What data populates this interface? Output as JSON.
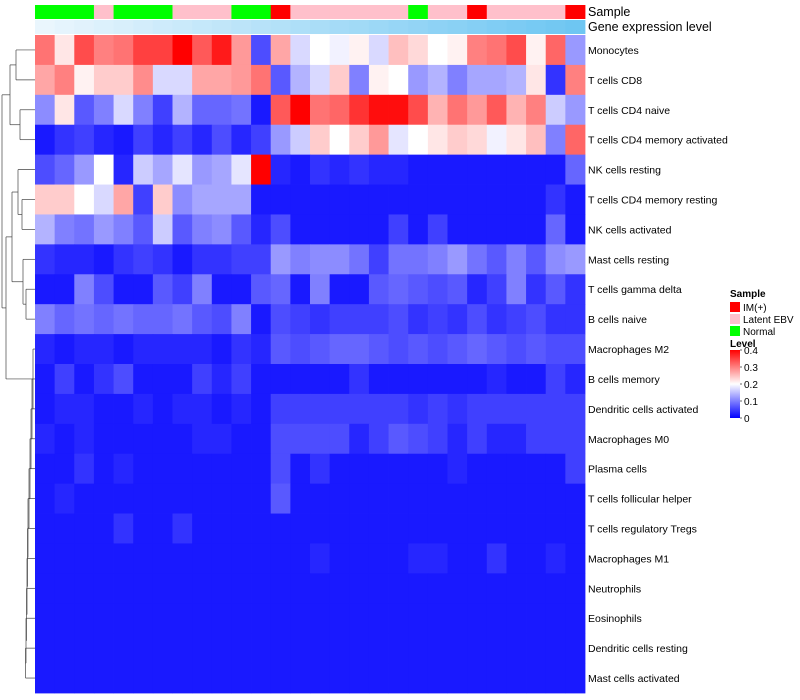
{
  "chart_data": {
    "type": "heatmap",
    "annotation_rows": [
      {
        "name": "Sample",
        "label": "Sample"
      },
      {
        "name": "Gene expression level",
        "label": "Gene expression level"
      }
    ],
    "sample_groups": [
      "Normal",
      "Normal",
      "Normal",
      "Latent EBV",
      "Normal",
      "Normal",
      "Normal",
      "Latent EBV",
      "Latent EBV",
      "Latent EBV",
      "Normal",
      "Normal",
      "IM(+)",
      "Latent EBV",
      "Latent EBV",
      "Latent EBV",
      "Latent EBV",
      "Latent EBV",
      "Latent EBV",
      "Normal",
      "Latent EBV",
      "Latent EBV",
      "IM(+)",
      "Latent EBV",
      "Latent EBV",
      "Latent EBV",
      "Latent EBV",
      "IM(+)"
    ],
    "expression_level": [
      0.05,
      0.07,
      0.09,
      0.11,
      0.13,
      0.15,
      0.17,
      0.19,
      0.21,
      0.23,
      0.25,
      0.27,
      0.29,
      0.31,
      0.33,
      0.35,
      0.37,
      0.39,
      0.41,
      0.43,
      0.45,
      0.47,
      0.49,
      0.51,
      0.53,
      0.55,
      0.57,
      0.59
    ],
    "rows": [
      "Monocytes",
      "T cells CD8",
      "T cells CD4 naive",
      "T cells CD4 memory activated",
      "NK cells resting",
      "T cells CD4 memory resting",
      "NK cells activated",
      "Mast cells resting",
      "T cells gamma delta",
      "B cells naive",
      "Macrophages M2",
      "B cells memory",
      "Dendritic cells activated",
      "Macrophages M0",
      "Plasma cells",
      "T cells follicular helper",
      "T cells regulatory  Tregs",
      "Macrophages M1",
      "Neutrophils",
      "Eosinophils",
      "Dendritic cells resting",
      "Mast cells activated"
    ],
    "values": [
      [
        0.31,
        0.22,
        0.34,
        0.3,
        0.31,
        0.35,
        0.35,
        0.4,
        0.33,
        0.38,
        0.28,
        0.06,
        0.27,
        0.17,
        0.2,
        0.19,
        0.21,
        0.17,
        0.25,
        0.23,
        0.2,
        0.21,
        0.3,
        0.31,
        0.34,
        0.21,
        0.32,
        0.12
      ],
      [
        0.27,
        0.3,
        0.21,
        0.24,
        0.24,
        0.29,
        0.17,
        0.17,
        0.27,
        0.27,
        0.28,
        0.31,
        0.07,
        0.14,
        0.17,
        0.24,
        0.1,
        0.21,
        0.2,
        0.12,
        0.14,
        0.1,
        0.13,
        0.13,
        0.14,
        0.22,
        0.04,
        0.3
      ],
      [
        0.11,
        0.22,
        0.07,
        0.1,
        0.17,
        0.1,
        0.05,
        0.14,
        0.08,
        0.08,
        0.09,
        0.02,
        0.33,
        0.4,
        0.31,
        0.32,
        0.36,
        0.39,
        0.39,
        0.34,
        0.26,
        0.31,
        0.28,
        0.33,
        0.26,
        0.3,
        0.16,
        0.12
      ],
      [
        0.02,
        0.04,
        0.05,
        0.03,
        0.02,
        0.05,
        0.03,
        0.05,
        0.03,
        0.06,
        0.03,
        0.05,
        0.12,
        0.16,
        0.24,
        0.2,
        0.24,
        0.28,
        0.18,
        0.2,
        0.22,
        0.24,
        0.23,
        0.19,
        0.22,
        0.25,
        0.1,
        0.32
      ],
      [
        0.06,
        0.08,
        0.12,
        0.2,
        0.03,
        0.16,
        0.13,
        0.18,
        0.12,
        0.13,
        0.18,
        0.4,
        0.03,
        0.02,
        0.04,
        0.03,
        0.04,
        0.03,
        0.03,
        0.02,
        0.02,
        0.02,
        0.02,
        0.02,
        0.02,
        0.02,
        0.02,
        0.08
      ],
      [
        0.24,
        0.24,
        0.2,
        0.17,
        0.27,
        0.05,
        0.24,
        0.11,
        0.13,
        0.13,
        0.13,
        0.02,
        0.02,
        0.02,
        0.02,
        0.02,
        0.02,
        0.02,
        0.02,
        0.02,
        0.02,
        0.02,
        0.02,
        0.02,
        0.02,
        0.02,
        0.04,
        0.02
      ],
      [
        0.14,
        0.1,
        0.09,
        0.12,
        0.1,
        0.07,
        0.16,
        0.07,
        0.1,
        0.11,
        0.07,
        0.03,
        0.06,
        0.02,
        0.02,
        0.02,
        0.02,
        0.02,
        0.05,
        0.02,
        0.05,
        0.02,
        0.02,
        0.02,
        0.02,
        0.02,
        0.08,
        0.02
      ],
      [
        0.04,
        0.03,
        0.03,
        0.02,
        0.04,
        0.05,
        0.04,
        0.02,
        0.04,
        0.04,
        0.05,
        0.05,
        0.12,
        0.1,
        0.11,
        0.11,
        0.09,
        0.05,
        0.09,
        0.09,
        0.1,
        0.12,
        0.09,
        0.07,
        0.1,
        0.07,
        0.11,
        0.12
      ],
      [
        0.02,
        0.02,
        0.1,
        0.06,
        0.02,
        0.02,
        0.07,
        0.05,
        0.1,
        0.02,
        0.02,
        0.07,
        0.08,
        0.02,
        0.1,
        0.02,
        0.02,
        0.07,
        0.08,
        0.07,
        0.06,
        0.07,
        0.03,
        0.05,
        0.1,
        0.04,
        0.07,
        0.04
      ],
      [
        0.1,
        0.08,
        0.09,
        0.08,
        0.09,
        0.08,
        0.08,
        0.09,
        0.07,
        0.06,
        0.1,
        0.02,
        0.06,
        0.05,
        0.04,
        0.05,
        0.05,
        0.05,
        0.06,
        0.04,
        0.05,
        0.04,
        0.06,
        0.04,
        0.05,
        0.06,
        0.04,
        0.04
      ],
      [
        0.03,
        0.02,
        0.03,
        0.03,
        0.02,
        0.03,
        0.03,
        0.03,
        0.03,
        0.02,
        0.04,
        0.03,
        0.07,
        0.06,
        0.07,
        0.08,
        0.08,
        0.07,
        0.06,
        0.07,
        0.06,
        0.07,
        0.08,
        0.07,
        0.06,
        0.07,
        0.06,
        0.06
      ],
      [
        0.02,
        0.05,
        0.02,
        0.04,
        0.06,
        0.02,
        0.02,
        0.02,
        0.05,
        0.03,
        0.05,
        0.02,
        0.02,
        0.02,
        0.02,
        0.02,
        0.04,
        0.02,
        0.02,
        0.02,
        0.02,
        0.02,
        0.02,
        0.03,
        0.02,
        0.02,
        0.05,
        0.03
      ],
      [
        0.02,
        0.03,
        0.03,
        0.02,
        0.02,
        0.03,
        0.02,
        0.03,
        0.03,
        0.02,
        0.03,
        0.02,
        0.05,
        0.05,
        0.05,
        0.05,
        0.05,
        0.05,
        0.05,
        0.04,
        0.05,
        0.04,
        0.05,
        0.05,
        0.05,
        0.05,
        0.05,
        0.05
      ],
      [
        0.03,
        0.02,
        0.03,
        0.02,
        0.02,
        0.02,
        0.02,
        0.02,
        0.03,
        0.03,
        0.02,
        0.02,
        0.06,
        0.06,
        0.06,
        0.06,
        0.03,
        0.05,
        0.07,
        0.06,
        0.05,
        0.03,
        0.05,
        0.03,
        0.03,
        0.05,
        0.05,
        0.05
      ],
      [
        0.02,
        0.02,
        0.04,
        0.02,
        0.03,
        0.02,
        0.02,
        0.02,
        0.02,
        0.02,
        0.02,
        0.02,
        0.06,
        0.02,
        0.04,
        0.02,
        0.02,
        0.02,
        0.02,
        0.02,
        0.02,
        0.03,
        0.02,
        0.02,
        0.02,
        0.02,
        0.02,
        0.05
      ],
      [
        0.02,
        0.03,
        0.02,
        0.02,
        0.02,
        0.02,
        0.02,
        0.02,
        0.02,
        0.02,
        0.02,
        0.02,
        0.07,
        0.02,
        0.02,
        0.02,
        0.02,
        0.02,
        0.02,
        0.02,
        0.02,
        0.02,
        0.02,
        0.02,
        0.02,
        0.02,
        0.02,
        0.02
      ],
      [
        0.02,
        0.02,
        0.02,
        0.02,
        0.04,
        0.02,
        0.02,
        0.04,
        0.02,
        0.02,
        0.02,
        0.02,
        0.02,
        0.02,
        0.02,
        0.02,
        0.02,
        0.02,
        0.02,
        0.02,
        0.02,
        0.02,
        0.02,
        0.02,
        0.02,
        0.02,
        0.02,
        0.02
      ],
      [
        0.02,
        0.02,
        0.02,
        0.02,
        0.02,
        0.02,
        0.02,
        0.02,
        0.02,
        0.02,
        0.02,
        0.02,
        0.02,
        0.02,
        0.03,
        0.02,
        0.02,
        0.02,
        0.02,
        0.03,
        0.03,
        0.02,
        0.02,
        0.04,
        0.02,
        0.02,
        0.03,
        0.02
      ],
      [
        0.02,
        0.02,
        0.02,
        0.02,
        0.02,
        0.02,
        0.02,
        0.02,
        0.02,
        0.02,
        0.02,
        0.02,
        0.02,
        0.02,
        0.02,
        0.02,
        0.02,
        0.02,
        0.02,
        0.02,
        0.02,
        0.02,
        0.02,
        0.02,
        0.02,
        0.02,
        0.02,
        0.02
      ],
      [
        0.02,
        0.02,
        0.02,
        0.02,
        0.02,
        0.02,
        0.02,
        0.02,
        0.02,
        0.02,
        0.02,
        0.02,
        0.02,
        0.02,
        0.02,
        0.02,
        0.02,
        0.02,
        0.02,
        0.02,
        0.02,
        0.02,
        0.02,
        0.02,
        0.02,
        0.02,
        0.02,
        0.02
      ],
      [
        0.02,
        0.02,
        0.02,
        0.02,
        0.02,
        0.02,
        0.02,
        0.02,
        0.02,
        0.02,
        0.02,
        0.02,
        0.02,
        0.02,
        0.02,
        0.02,
        0.02,
        0.02,
        0.02,
        0.02,
        0.02,
        0.02,
        0.02,
        0.02,
        0.02,
        0.02,
        0.02,
        0.02
      ],
      [
        0.02,
        0.02,
        0.02,
        0.02,
        0.02,
        0.02,
        0.02,
        0.02,
        0.02,
        0.02,
        0.02,
        0.02,
        0.02,
        0.02,
        0.02,
        0.02,
        0.02,
        0.02,
        0.02,
        0.02,
        0.02,
        0.02,
        0.02,
        0.02,
        0.02,
        0.02,
        0.02,
        0.02
      ]
    ],
    "color_scale": {
      "low": "#0000ff",
      "mid": "#ffffff",
      "high": "#ff0000",
      "min": 0,
      "mid_value": 0.2,
      "max": 0.4
    },
    "expression_colors": {
      "low": "#eaf6fd",
      "high": "#6ec6f2"
    },
    "legend": {
      "placement": "right",
      "sample_title": "Sample",
      "sample_items": [
        {
          "label": "IM(+)",
          "color": "#ff0000"
        },
        {
          "label": "Latent EBV",
          "color": "#ffc0cb"
        },
        {
          "label": "Normal",
          "color": "#00ff00"
        }
      ],
      "level_title": "Level",
      "level_ticks": [
        "0.4",
        "0.3",
        "0.2",
        "0.1",
        "0"
      ],
      "level_tick_values": [
        0.4,
        0.3,
        0.2,
        0.1,
        0
      ]
    }
  }
}
